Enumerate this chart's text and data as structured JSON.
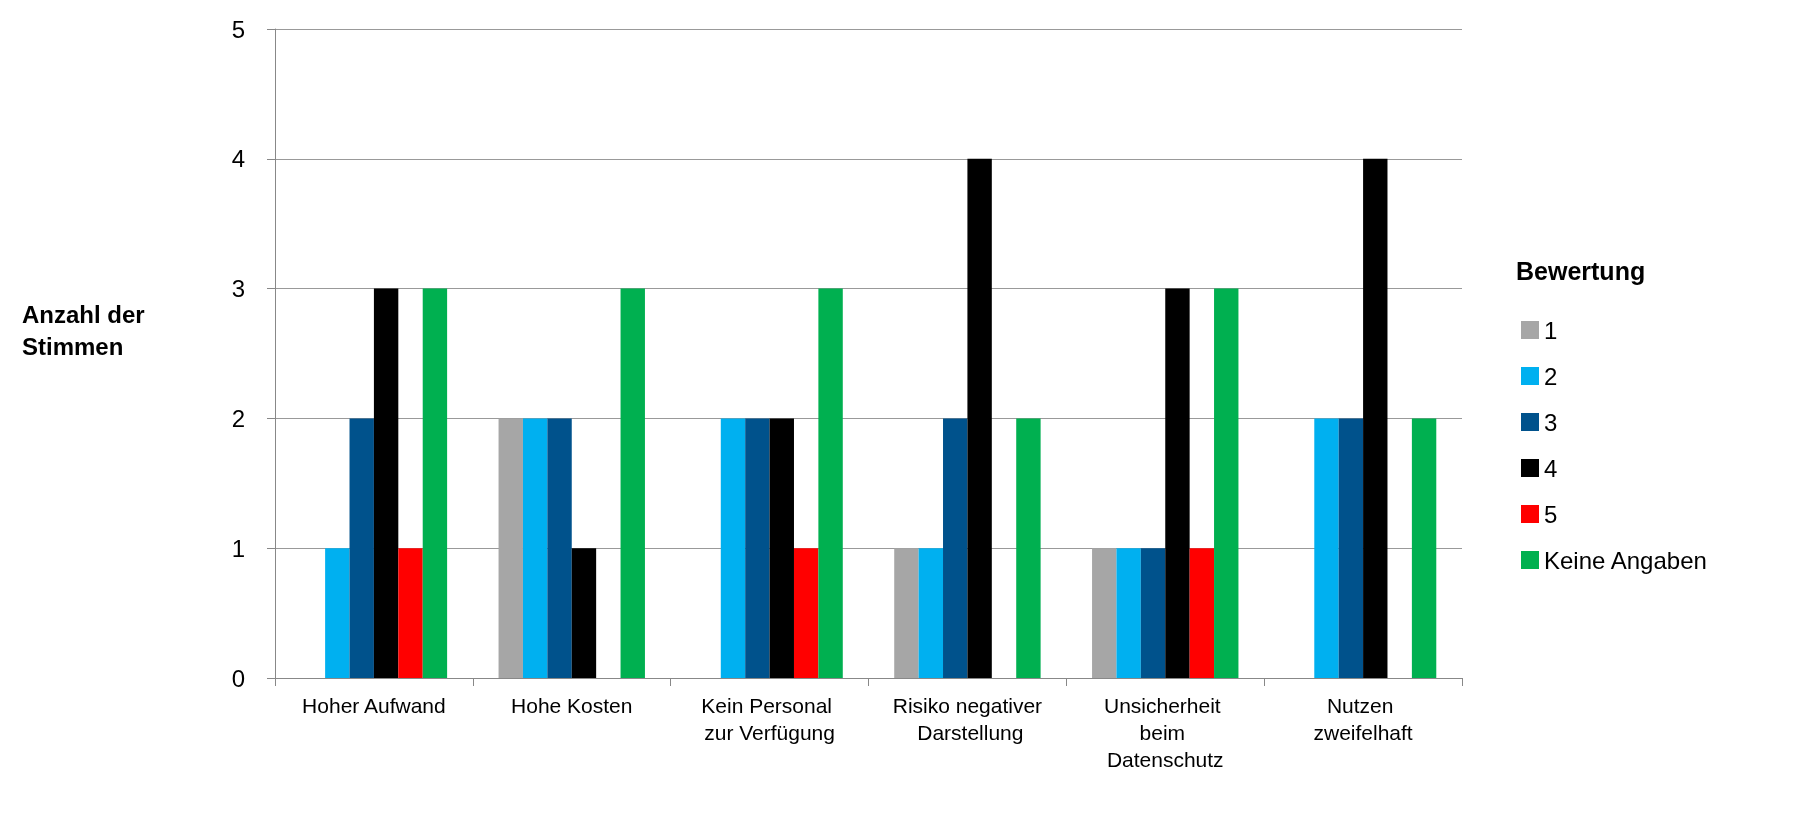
{
  "chart_data": {
    "type": "bar",
    "ylabel": "Anzahl der Stimmen",
    "legend_title": "Bewertung",
    "legend": "right",
    "grid": "y",
    "categories": [
      "Hoher Aufwand",
      "Hohe Kosten",
      "Kein Personal zur Verfügung",
      "Risiko negativer Darstellung",
      "Unsicherheit beim Datenschutz",
      "Nutzen zweifelhaft"
    ],
    "ylim": [
      0,
      5
    ],
    "yticks": [
      0,
      1,
      2,
      3,
      4,
      5
    ],
    "series": [
      {
        "name": "1",
        "color": "#a6a6a6",
        "values": [
          0,
          2,
          0,
          1,
          1,
          0
        ]
      },
      {
        "name": "2",
        "color": "#00b0f0",
        "values": [
          1,
          2,
          2,
          1,
          1,
          2
        ]
      },
      {
        "name": "3",
        "color": "#00528c",
        "values": [
          2,
          2,
          2,
          2,
          1,
          2
        ]
      },
      {
        "name": "4",
        "color": "#000000",
        "values": [
          3,
          1,
          2,
          4,
          3,
          4
        ]
      },
      {
        "name": "5",
        "color": "#ff0000",
        "values": [
          1,
          0,
          1,
          0,
          1,
          0
        ]
      },
      {
        "name": "Keine Angaben",
        "color": "#00b050",
        "values": [
          3,
          3,
          3,
          2,
          3,
          2
        ]
      }
    ]
  }
}
